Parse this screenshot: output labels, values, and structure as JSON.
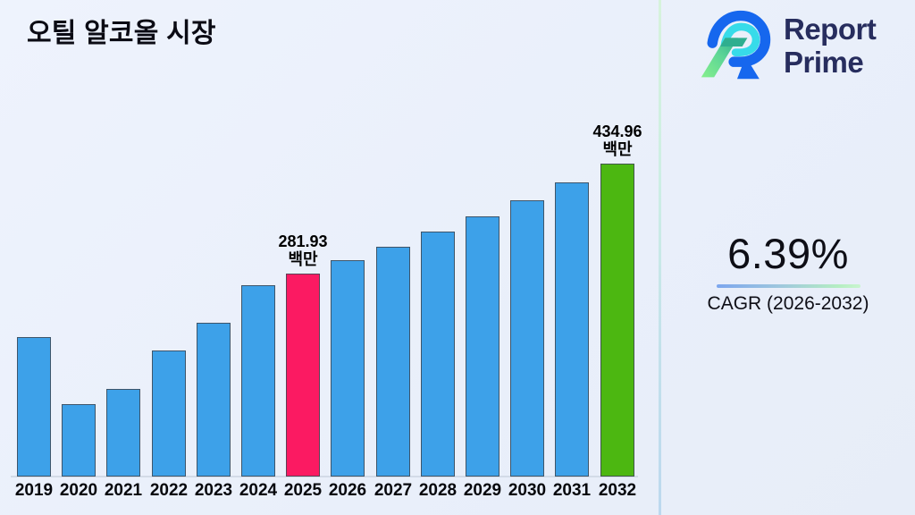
{
  "title": "오틸 알코올 시장",
  "logo": {
    "line1": "Report",
    "line2": "Prime"
  },
  "cagr": {
    "value": "6.39%",
    "label": "CAGR (2026-2032)"
  },
  "chart_data": {
    "type": "bar",
    "title": "오틸 알코올 시장",
    "unit_label": "백만",
    "categories": [
      "2019",
      "2020",
      "2021",
      "2022",
      "2023",
      "2024",
      "2025",
      "2026",
      "2027",
      "2028",
      "2029",
      "2030",
      "2031",
      "2032"
    ],
    "values": [
      194,
      100,
      122,
      175,
      214,
      266,
      281.93,
      300,
      319,
      340,
      361,
      384,
      409,
      434.96
    ],
    "labeled_values_note": "only 2025 and 2032 carry printed data labels; other values estimated from bar heights",
    "annotations": [
      {
        "index": 6,
        "category": "2025",
        "value_label": "281.93",
        "unit": "백만"
      },
      {
        "index": 13,
        "category": "2032",
        "value_label": "434.96",
        "unit": "백만"
      }
    ],
    "colors": {
      "default_bar": "#3da1e9",
      "highlight_2025": "#fb1a62",
      "highlight_2032": "#4cb711",
      "bar_border": "#3e4854",
      "background": "#ebf1fa"
    },
    "bar_color_overrides": {
      "6": "#fb1a62",
      "13": "#4cb711"
    },
    "ylim": [
      0,
      450
    ],
    "gridlines": false,
    "legend": false,
    "x_axis_labels_visible": true,
    "cagr_annotation": {
      "value": "6.39%",
      "label": "CAGR (2026-2032)"
    }
  }
}
